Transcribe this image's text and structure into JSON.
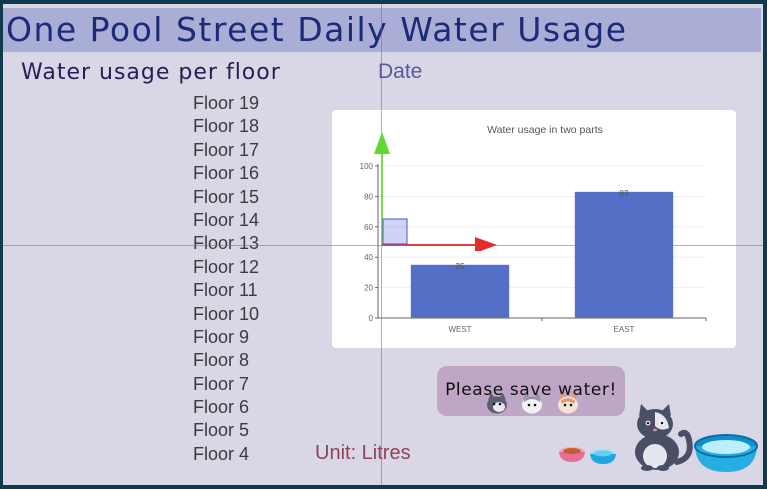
{
  "header": {
    "title": "One Pool Street Daily Water Usage"
  },
  "sidebar": {
    "heading": "Water usage per floor",
    "floors": [
      "Floor 19",
      "Floor 18",
      "Floor 17",
      "Floor 16",
      "Floor 15",
      "Floor 14",
      "Floor 13",
      "Floor 12",
      "Floor 11",
      "Floor 10",
      "Floor 9",
      "Floor 8",
      "Floor 7",
      "Floor 6",
      "Floor 5",
      "Floor 4"
    ]
  },
  "date_label": "Date",
  "unit_label": "Unit: Litres",
  "message": "Please save water!",
  "chart_data": {
    "type": "bar",
    "title": "Water usage in two parts",
    "categories": [
      "WEST",
      "EAST"
    ],
    "values": [
      35,
      83
    ],
    "xlabel": "",
    "ylabel": "",
    "ylim": [
      0,
      100
    ],
    "yticks": [
      0,
      20,
      40,
      60,
      80,
      100
    ],
    "grid": true,
    "bar_color": "#5470c6"
  },
  "colors": {
    "title_bar": "#aaaed6",
    "title_text": "#1d2a78",
    "panel_bg": "#d9d6e6",
    "bubble": "#c0a6c6",
    "unit_text": "#8e4458"
  },
  "icons": {
    "cat_faces": [
      "cat-face-dark-icon",
      "cat-face-gray-icon",
      "cat-face-orange-icon"
    ],
    "cat": "cat-illustration-icon",
    "food_bowl": "pet-food-bowl-icon",
    "water_bowl": "pet-water-bowl-icon",
    "large_bowl": "large-water-bowl-icon"
  }
}
